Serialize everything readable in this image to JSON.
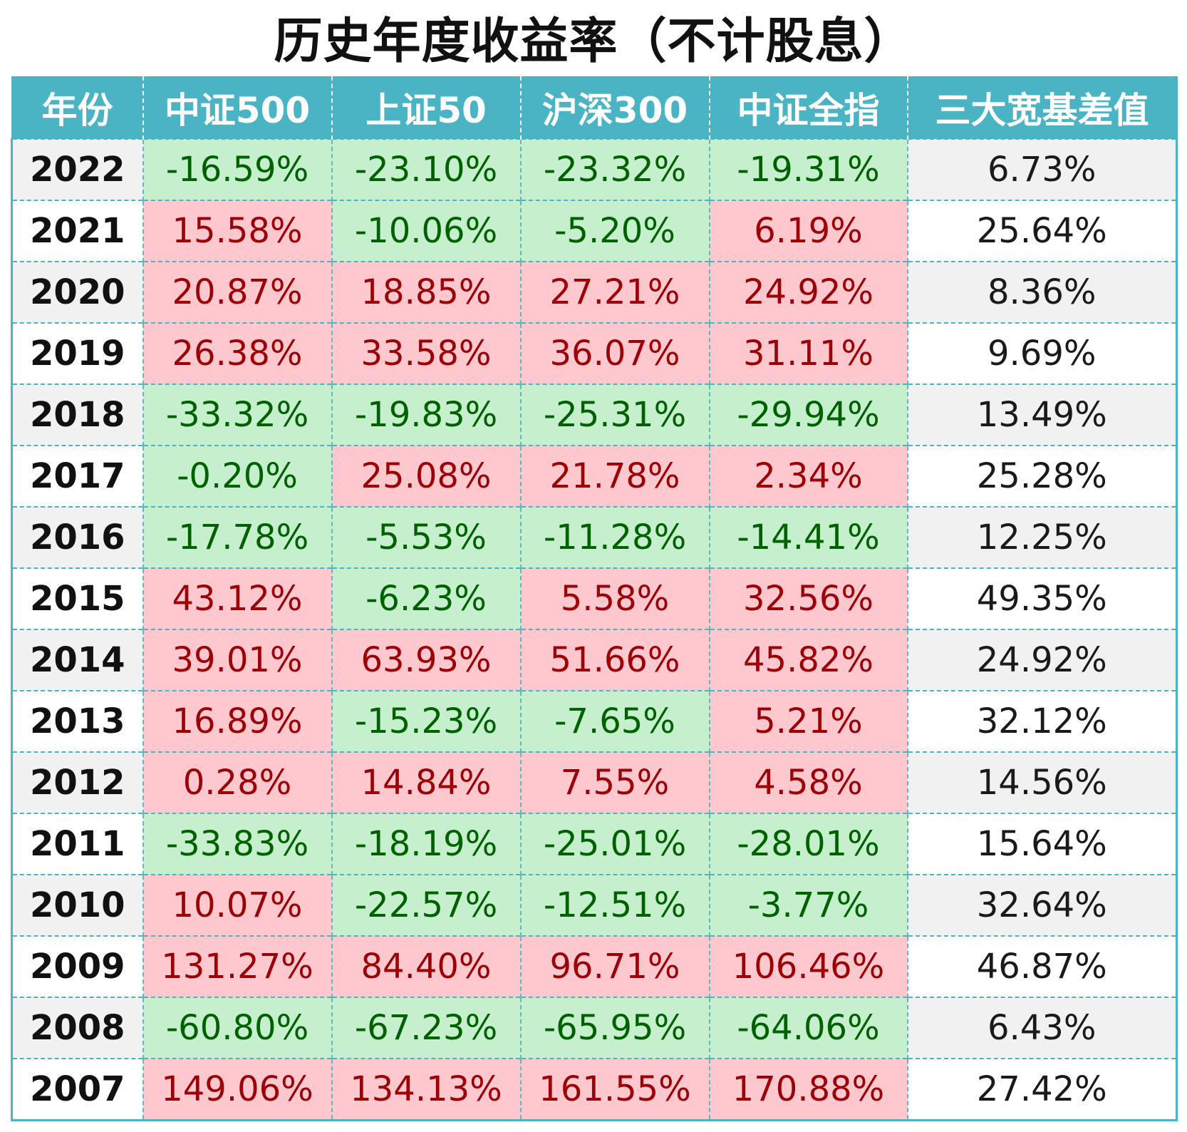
{
  "title": "历史年度收益率（不计股息）",
  "colors": {
    "header_bg": "#4bb4c4",
    "positive_bg": "#ffc7ce",
    "positive_text": "#9c0006",
    "negative_bg": "#c6efce",
    "negative_text": "#006100"
  },
  "chart_data": {
    "type": "table",
    "title": "历史年度收益率（不计股息）",
    "columns": [
      "年份",
      "中证500",
      "上证50",
      "沪深300",
      "中证全指",
      "三大宽基差值"
    ],
    "rows": [
      {
        "year": "2022",
        "values": [
          "-16.59%",
          "-23.10%",
          "-23.32%",
          "-19.31%",
          "6.73%"
        ]
      },
      {
        "year": "2021",
        "values": [
          "15.58%",
          "-10.06%",
          "-5.20%",
          "6.19%",
          "25.64%"
        ]
      },
      {
        "year": "2020",
        "values": [
          "20.87%",
          "18.85%",
          "27.21%",
          "24.92%",
          "8.36%"
        ]
      },
      {
        "year": "2019",
        "values": [
          "26.38%",
          "33.58%",
          "36.07%",
          "31.11%",
          "9.69%"
        ]
      },
      {
        "year": "2018",
        "values": [
          "-33.32%",
          "-19.83%",
          "-25.31%",
          "-29.94%",
          "13.49%"
        ]
      },
      {
        "year": "2017",
        "values": [
          "-0.20%",
          "25.08%",
          "21.78%",
          "2.34%",
          "25.28%"
        ]
      },
      {
        "year": "2016",
        "values": [
          "-17.78%",
          "-5.53%",
          "-11.28%",
          "-14.41%",
          "12.25%"
        ]
      },
      {
        "year": "2015",
        "values": [
          "43.12%",
          "-6.23%",
          "5.58%",
          "32.56%",
          "49.35%"
        ]
      },
      {
        "year": "2014",
        "values": [
          "39.01%",
          "63.93%",
          "51.66%",
          "45.82%",
          "24.92%"
        ]
      },
      {
        "year": "2013",
        "values": [
          "16.89%",
          "-15.23%",
          "-7.65%",
          "5.21%",
          "32.12%"
        ]
      },
      {
        "year": "2012",
        "values": [
          "0.28%",
          "14.84%",
          "7.55%",
          "4.58%",
          "14.56%"
        ]
      },
      {
        "year": "2011",
        "values": [
          "-33.83%",
          "-18.19%",
          "-25.01%",
          "-28.01%",
          "15.64%"
        ]
      },
      {
        "year": "2010",
        "values": [
          "10.07%",
          "-22.57%",
          "-12.51%",
          "-3.77%",
          "32.64%"
        ]
      },
      {
        "year": "2009",
        "values": [
          "131.27%",
          "84.40%",
          "96.71%",
          "106.46%",
          "46.87%"
        ]
      },
      {
        "year": "2008",
        "values": [
          "-60.80%",
          "-67.23%",
          "-65.95%",
          "-64.06%",
          "6.43%"
        ]
      },
      {
        "year": "2007",
        "values": [
          "149.06%",
          "134.13%",
          "161.55%",
          "170.88%",
          "27.42%"
        ]
      }
    ]
  }
}
